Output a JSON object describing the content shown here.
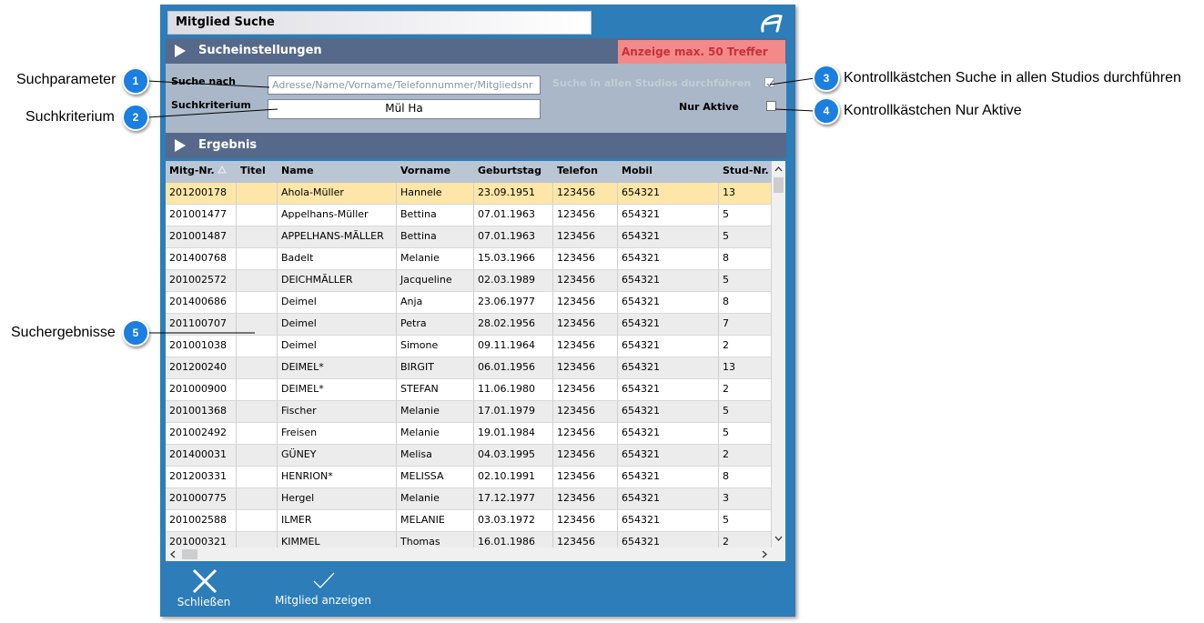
{
  "window": {
    "title": "Mitglied Suche"
  },
  "search_settings": {
    "header": "Sucheinstellungen",
    "max_hits_notice": "Anzeige max. 50 Treffer",
    "search_for_label": "Suche nach",
    "search_for_placeholder": "Adresse/Name/Vorname/Telefonnummer/Mitgliedsnr",
    "criterion_label": "Suchkriterium",
    "criterion_value": "Mül Ha",
    "all_studios_label": "Suche in allen Studios durchführen",
    "all_studios_checked": true,
    "active_only_label": "Nur Aktive",
    "active_only_checked": false
  },
  "results": {
    "header": "Ergebnis",
    "columns": [
      "Mitg-Nr.",
      "Titel",
      "Name",
      "Vorname",
      "Geburtstag",
      "Telefon",
      "Mobil",
      "Stud-Nr."
    ],
    "selected_row": 0,
    "rows": [
      [
        "201200178",
        null,
        "Ahola-Müller",
        "Hannele",
        "23.09.1951",
        "123456",
        "654321",
        "13"
      ],
      [
        "201001477",
        null,
        "Appelhans-Müller",
        "Bettina",
        "07.01.1963",
        "123456",
        "654321",
        "5"
      ],
      [
        "201001487",
        null,
        "APPELHANS-MÃLLER",
        "Bettina",
        "07.01.1963",
        "123456",
        "654321",
        "5"
      ],
      [
        "201400768",
        null,
        "Badelt",
        "Melanie",
        "15.03.1966",
        "123456",
        "654321",
        "8"
      ],
      [
        "201002572",
        null,
        "DEICHMÃLLER",
        "Jacqueline",
        "02.03.1989",
        "123456",
        "654321",
        "5"
      ],
      [
        "201400686",
        null,
        "Deimel",
        "Anja",
        "23.06.1977",
        "123456",
        "654321",
        "8"
      ],
      [
        "201100707",
        null,
        "Deimel",
        "Petra",
        "28.02.1956",
        "123456",
        "654321",
        "7"
      ],
      [
        "201001038",
        null,
        "Deimel",
        "Simone",
        "09.11.1964",
        "123456",
        "654321",
        "2"
      ],
      [
        "201200240",
        null,
        "DEIMEL*",
        "BIRGIT",
        "06.01.1956",
        "123456",
        "654321",
        "13"
      ],
      [
        "201000900",
        null,
        "DEIMEL*",
        "STEFAN",
        "11.06.1980",
        "123456",
        "654321",
        "2"
      ],
      [
        "201001368",
        null,
        "Fischer",
        "Melanie",
        "17.01.1979",
        "123456",
        "654321",
        "5"
      ],
      [
        "201002492",
        null,
        "Freisen",
        "Melanie",
        "19.01.1984",
        "123456",
        "654321",
        "5"
      ],
      [
        "201400031",
        null,
        "GÜNEY",
        "Melisa",
        "04.03.1995",
        "123456",
        "654321",
        "2"
      ],
      [
        "201200331",
        null,
        "HENRION*",
        "MELISSA",
        "02.10.1991",
        "123456",
        "654321",
        "8"
      ],
      [
        "201000775",
        null,
        "Hergel",
        "Melanie",
        "17.12.1977",
        "123456",
        "654321",
        "3"
      ],
      [
        "201002588",
        null,
        "ILMER",
        "MELANIE",
        "03.03.1972",
        "123456",
        "654321",
        "5"
      ],
      [
        "201000321",
        null,
        "KIMMEL",
        "Thomas",
        "16.01.1986",
        "123456",
        "654321",
        "2"
      ]
    ]
  },
  "footer": {
    "buttons": [
      {
        "label": "Schließen"
      },
      {
        "label": "Mitglied anzeigen"
      }
    ]
  },
  "annotations": [
    {
      "number": 1,
      "label": "Suchparameter"
    },
    {
      "number": 2,
      "label": "Suchkriterium"
    },
    {
      "number": 3,
      "label": "Kontrollkästchen Suche in allen Studios durchführen"
    },
    {
      "number": 4,
      "label": "Kontrollkästchen Nur Aktive"
    },
    {
      "number": 5,
      "label": "Suchergebnisse"
    }
  ]
}
